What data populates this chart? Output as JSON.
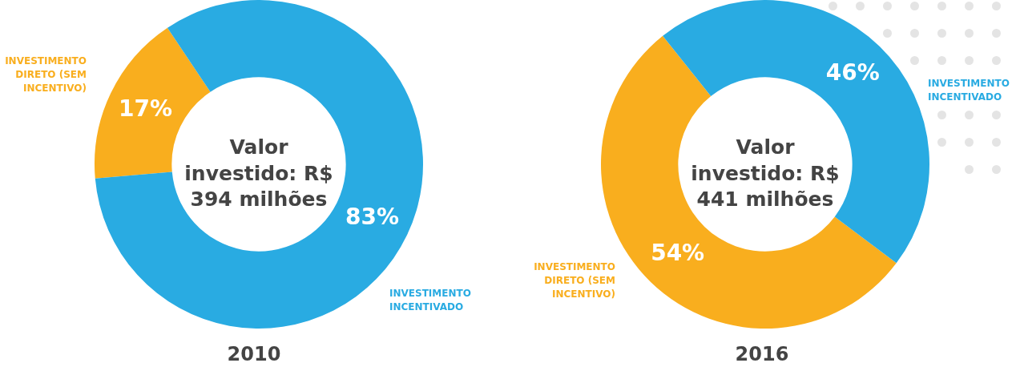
{
  "chart_data": [
    {
      "type": "donut",
      "title": "2010",
      "categories": [
        "INVESTIMENTO DIRETO (SEM INCENTIVO)",
        "INVESTIMENTO INCENTIVADO"
      ],
      "values": [
        17,
        83
      ],
      "colors": [
        "#f9ae1e",
        "#29abe2"
      ],
      "value_labels": [
        "17%",
        "83%"
      ],
      "legend": false,
      "annotations": [
        "Valor investido: R$ 394 milhões"
      ]
    },
    {
      "type": "donut",
      "title": "2016",
      "categories": [
        "INVESTIMENTO DIRETO (SEM INCENTIVO)",
        "INVESTIMENTO INCENTIVADO"
      ],
      "values": [
        54,
        46
      ],
      "colors": [
        "#f9ae1e",
        "#29abe2"
      ],
      "value_labels": [
        "54%",
        "46%"
      ],
      "legend": false,
      "annotations": [
        "Valor investido: R$ 441 milhões"
      ]
    }
  ]
}
